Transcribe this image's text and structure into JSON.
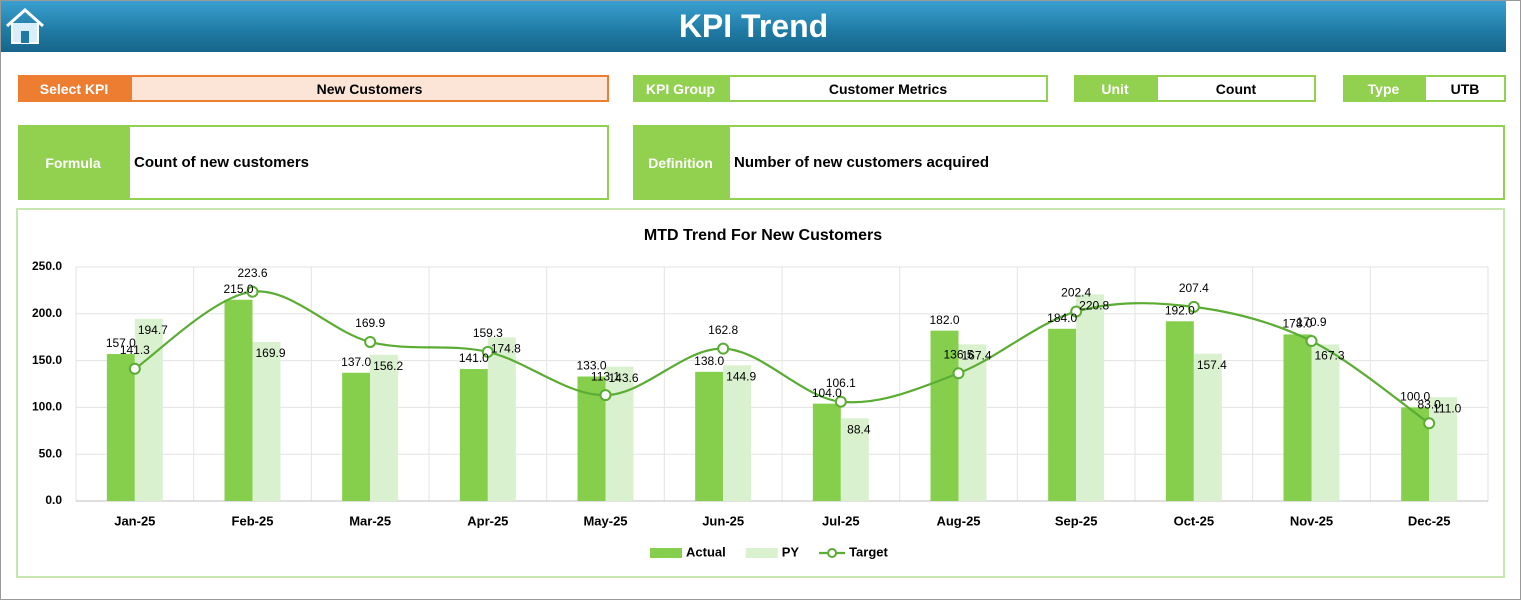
{
  "header": {
    "title": "KPI Trend"
  },
  "fields": [
    {
      "label": "Select KPI",
      "value": "New Customers"
    },
    {
      "label": "KPI Group",
      "value": "Customer Metrics"
    },
    {
      "label": "Unit",
      "value": "Count"
    },
    {
      "label": "Type",
      "value": "UTB"
    }
  ],
  "details": [
    {
      "label": "Formula",
      "value": "Count of new customers"
    },
    {
      "label": "Definition",
      "value": "Number of new customers acquired"
    }
  ],
  "chart_data": {
    "type": "bar",
    "title": "MTD Trend For New Customers",
    "categories": [
      "Jan-25",
      "Feb-25",
      "Mar-25",
      "Apr-25",
      "May-25",
      "Jun-25",
      "Jul-25",
      "Aug-25",
      "Sep-25",
      "Oct-25",
      "Nov-25",
      "Dec-25"
    ],
    "series": [
      {
        "name": "Actual",
        "type": "bar",
        "color": "#85cf4c",
        "values": [
          157,
          215,
          137,
          141,
          133,
          138,
          104,
          182,
          184,
          192,
          178,
          100
        ],
        "value_labels": [
          "157.0",
          "215.0",
          "137.0",
          "141.0",
          "133.0",
          "138.0",
          "104.0",
          "182.0",
          "184.0",
          "192.0",
          "178.0",
          "100.0"
        ]
      },
      {
        "name": "PY",
        "type": "bar",
        "color": "#daf1d0",
        "values": [
          194.7,
          169.9,
          156.2,
          174.8,
          143.6,
          144.9,
          88.4,
          167.4,
          220.8,
          157.4,
          167.3,
          111
        ],
        "value_labels": [
          "194.7",
          "169.9",
          "156.2",
          "174.8",
          "143.6",
          "144.9",
          "88.4",
          "167.4",
          "220.8",
          "157.4",
          "167.3",
          "111.0"
        ]
      },
      {
        "name": "Target",
        "type": "line",
        "color": "#5aac33",
        "values": [
          141.3,
          223.6,
          169.9,
          159.3,
          113.1,
          162.8,
          106.1,
          136.5,
          202.4,
          207.4,
          170.9,
          83
        ],
        "value_labels": [
          "141.3",
          "223.6",
          "169.9",
          "159.3",
          "113.1",
          "162.8",
          "106.1",
          "136.5",
          "202.4",
          "207.4",
          "170.9",
          "83.0"
        ]
      }
    ],
    "ylim": [
      0,
      250
    ],
    "yticks": [
      {
        "value": 0,
        "label": "0.0"
      },
      {
        "value": 50,
        "label": "50.0"
      },
      {
        "value": 100,
        "label": "100.0"
      },
      {
        "value": 150,
        "label": "150.0"
      },
      {
        "value": 200,
        "label": "200.0"
      },
      {
        "value": 250,
        "label": "250.0"
      }
    ],
    "grid": true,
    "legend": "bottom"
  }
}
